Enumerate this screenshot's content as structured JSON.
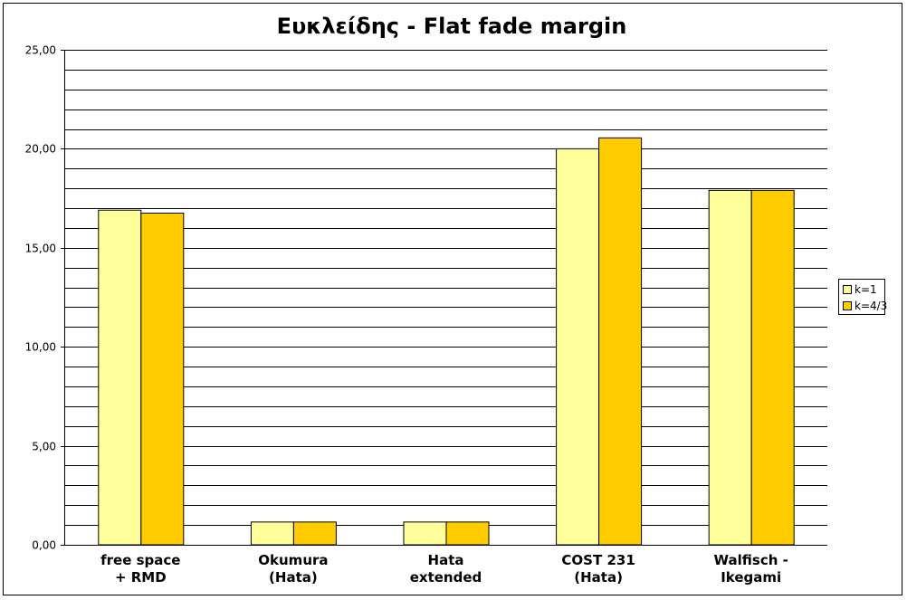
{
  "chart_data": {
    "type": "bar",
    "title": "Ευκλείδης - Flat fade margin",
    "categories": [
      "free space\n+ RMD",
      "Okumura\n(Hata)",
      "Hata\nextended",
      "COST 231\n(Hata)",
      "Walfisch -\nIkegami"
    ],
    "series": [
      {
        "name": "k=1",
        "color": "#ffff99",
        "values": [
          16.9,
          1.15,
          1.15,
          20.0,
          17.9
        ]
      },
      {
        "name": "k=4/3",
        "color": "#ffcc00",
        "values": [
          16.75,
          1.15,
          1.15,
          20.55,
          17.9
        ]
      }
    ],
    "ylim": [
      0,
      25
    ],
    "yticks": [
      "0,00",
      "5,00",
      "10,00",
      "15,00",
      "20,00",
      "25,00"
    ],
    "ytick_values": [
      0,
      5,
      10,
      15,
      20,
      25
    ],
    "minor_grid_step": 1,
    "grid": true,
    "legend_position": "right",
    "xlabel": "",
    "ylabel": ""
  }
}
